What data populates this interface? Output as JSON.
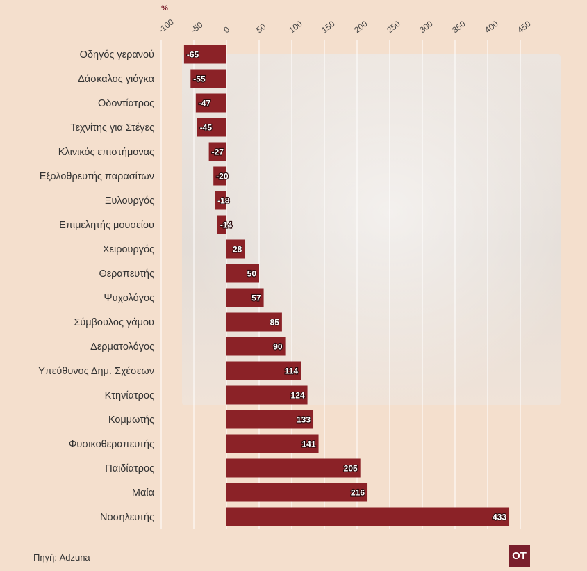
{
  "source_label": "Πηγή: Adzuna",
  "logo_text": "OT",
  "colors": {
    "bar": "#8b2227",
    "background": "#f4dfcd",
    "grid": "#ffffff",
    "label_text": "#333333",
    "unit_text": "#7a1f2c"
  },
  "chart_data": {
    "type": "bar",
    "orientation": "horizontal",
    "unit": "%",
    "xlim": [
      -100,
      450
    ],
    "xticks": [
      -100,
      -50,
      0,
      50,
      100,
      150,
      200,
      250,
      300,
      350,
      400,
      450
    ],
    "grid": true,
    "categories": [
      "Οδηγός γερανού",
      "Δάσκαλος γιόγκα",
      "Οδοντίατρος",
      "Τεχνίτης για Στέγες",
      "Κλινικός επιστήμονας",
      "Εξολοθρευτής παρασίτων",
      "Ξυλουργός",
      "Επιμελητής μουσείου",
      "Χειρουργός",
      "Θεραπευτής",
      "Ψυχολόγος",
      "Σύμβουλος γάμου",
      "Δερματολόγος",
      "Υπεύθυνος Δημ. Σχέσεων",
      "Κτηνίατρος",
      "Κομμωτής",
      "Φυσικοθεραπευτής",
      "Παιδίατρος",
      "Μαία",
      "Νοσηλευτής"
    ],
    "values": [
      -65,
      -55,
      -47,
      -45,
      -27,
      -20,
      -18,
      -14,
      28,
      50,
      57,
      85,
      90,
      114,
      124,
      133,
      141,
      205,
      216,
      433
    ]
  }
}
